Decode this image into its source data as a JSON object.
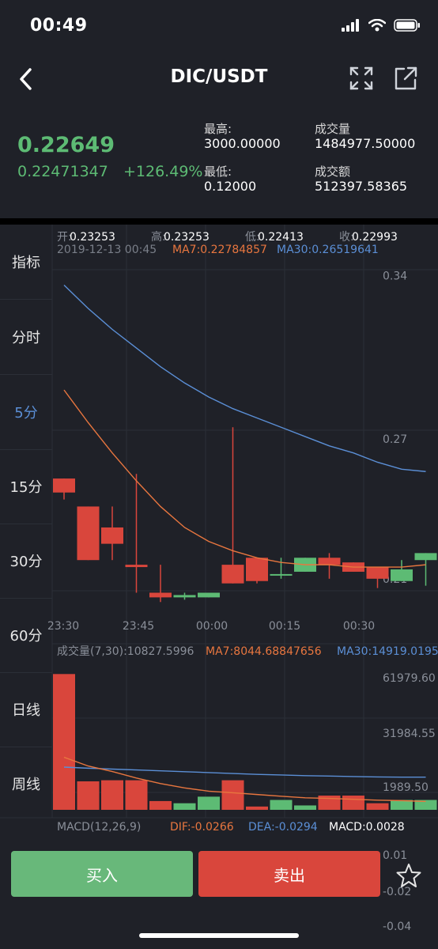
{
  "status_bar": {
    "time": "00:49"
  },
  "nav": {
    "title": "DIC/USDT",
    "back_icon": "chevron-left-icon",
    "expand_icon": "expand-icon",
    "share_icon": "share-icon"
  },
  "ticker": {
    "price": "0.22649",
    "price_cny": "0.22471347",
    "change_pct": "+126.49%",
    "high_label": "最高:",
    "high": "3000.00000",
    "low_label": "最低:",
    "low": "0.12000",
    "volume_label": "成交量",
    "volume": "1484977.50000",
    "turnover_label": "成交额",
    "turnover": "512397.58365"
  },
  "sidebar": {
    "items": [
      {
        "label": "指标"
      },
      {
        "label": "分时"
      },
      {
        "label": "5分",
        "active": true
      },
      {
        "label": "15分"
      },
      {
        "label": "30分"
      },
      {
        "label": "60分"
      },
      {
        "label": "日线"
      },
      {
        "label": "周线"
      }
    ]
  },
  "chart_data": {
    "type": "candlestick",
    "ohlc_header": {
      "open_label": "开:",
      "open": "0.23253",
      "high_label": "高:",
      "high": "0.23253",
      "low_label": "低:",
      "low": "0.22413",
      "close_label": "收:",
      "close": "0.22993"
    },
    "datetime": "2019-12-13 00:45",
    "ma7_label": "MA7:0.22784857",
    "ma30_label": "MA30:0.26519641",
    "y_ticks": [
      "0.34",
      "0.27",
      "0.21"
    ],
    "y_tick_values": [
      0.34,
      0.27,
      0.21
    ],
    "ylim": [
      0.195,
      0.345
    ],
    "x_ticks": [
      "23:30",
      "23:45",
      "00:00",
      "00:15",
      "00:30"
    ],
    "candles": [
      {
        "o": 0.253,
        "h": 0.253,
        "l": 0.244,
        "c": 0.247
      },
      {
        "o": 0.241,
        "h": 0.241,
        "l": 0.218,
        "c": 0.218
      },
      {
        "o": 0.232,
        "h": 0.241,
        "l": 0.218,
        "c": 0.225
      },
      {
        "o": 0.216,
        "h": 0.255,
        "l": 0.204,
        "c": 0.215
      },
      {
        "o": 0.204,
        "h": 0.216,
        "l": 0.2,
        "c": 0.202
      },
      {
        "o": 0.202,
        "h": 0.204,
        "l": 0.201,
        "c": 0.203
      },
      {
        "o": 0.202,
        "h": 0.204,
        "l": 0.202,
        "c": 0.204
      },
      {
        "o": 0.216,
        "h": 0.275,
        "l": 0.208,
        "c": 0.208
      },
      {
        "o": 0.219,
        "h": 0.219,
        "l": 0.208,
        "c": 0.209
      },
      {
        "o": 0.212,
        "h": 0.219,
        "l": 0.21,
        "c": 0.212
      },
      {
        "o": 0.213,
        "h": 0.219,
        "l": 0.213,
        "c": 0.219
      },
      {
        "o": 0.219,
        "h": 0.221,
        "l": 0.21,
        "c": 0.216
      },
      {
        "o": 0.217,
        "h": 0.217,
        "l": 0.213,
        "c": 0.213
      },
      {
        "o": 0.215,
        "h": 0.215,
        "l": 0.206,
        "c": 0.21
      },
      {
        "o": 0.209,
        "h": 0.218,
        "l": 0.209,
        "c": 0.214
      },
      {
        "o": 0.218,
        "h": 0.221,
        "l": 0.207,
        "c": 0.221
      }
    ],
    "ma7": [
      0.291,
      0.277,
      0.264,
      0.252,
      0.241,
      0.232,
      0.226,
      0.222,
      0.219,
      0.217,
      0.216,
      0.216,
      0.215,
      0.215,
      0.215,
      0.216
    ],
    "ma30": [
      0.336,
      0.326,
      0.317,
      0.309,
      0.301,
      0.294,
      0.288,
      0.283,
      0.279,
      0.275,
      0.271,
      0.267,
      0.264,
      0.26,
      0.257,
      0.256
    ],
    "volume": {
      "label": "成交量(7,30):10827.5996",
      "ma7_label": "MA7:8044.68847656",
      "ma30_label": "MA30:14919.0195",
      "y_ticks": [
        "61979.60",
        "31984.55",
        "1989.50"
      ],
      "ylim": [
        0,
        65000
      ],
      "bars": [
        62000,
        13000,
        13500,
        13500,
        4000,
        3000,
        6000,
        13500,
        1500,
        4500,
        2000,
        6500,
        6500,
        3000,
        4500,
        4500
      ],
      "ma7": [
        24000,
        20000,
        17500,
        14500,
        12000,
        10000,
        8500,
        7800,
        7000,
        6200,
        5500,
        5200,
        4800,
        4400,
        4200,
        3800
      ],
      "ma30": [
        19500,
        19000,
        18600,
        18200,
        17800,
        17400,
        17000,
        16600,
        16200,
        15900,
        15600,
        15400,
        15200,
        15000,
        14919,
        14919
      ]
    },
    "macd": {
      "label": "MACD(12,26,9)",
      "dif": "DIF:-0.0266",
      "dea": "DEA:-0.0294",
      "macd": "MACD:0.0028",
      "y_ticks": [
        "0.01",
        "-0.02",
        "-0.04"
      ]
    }
  },
  "colors": {
    "up": "#5dbb74",
    "down": "#d9463c",
    "ma7": "#e8763f",
    "ma30": "#5b8fd6",
    "active": "#5b8fd6"
  },
  "actions": {
    "buy": "买入",
    "sell": "卖出",
    "favorite_icon": "star-icon"
  }
}
